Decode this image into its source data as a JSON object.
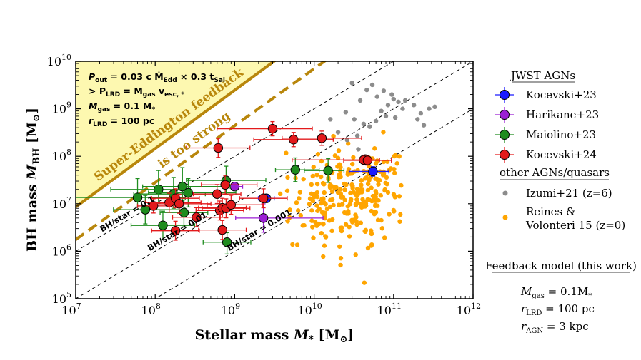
{
  "chart_data": {
    "type": "scatter",
    "xscale": "log",
    "yscale": "log",
    "xlim": [
      10000000,
      1000000000000
    ],
    "ylim": [
      100000,
      10000000000
    ],
    "xlabel": "Stellar mass",
    "xlabel_sym": "M",
    "xlabel_sub": "*",
    "xlabel_unit": "[M",
    "xlabel_unit_sub": "⊙",
    "xlabel_close": "]",
    "ylabel": "BH mass",
    "ylabel_sym": "M",
    "ylabel_sub": "BH",
    "ylabel_unit": "[M",
    "ylabel_unit_sub": "⊙",
    "ylabel_close": "]",
    "x_ticks": [
      {
        "value": 10000000,
        "base": "10",
        "exp": "7"
      },
      {
        "value": 100000000,
        "base": "10",
        "exp": "8"
      },
      {
        "value": 1000000000,
        "base": "10",
        "exp": "9"
      },
      {
        "value": 10000000000,
        "base": "10",
        "exp": "10"
      },
      {
        "value": 100000000000,
        "base": "10",
        "exp": "11"
      },
      {
        "value": 1000000000000,
        "base": "10",
        "exp": "12"
      }
    ],
    "y_ticks": [
      {
        "value": 100000,
        "base": "10",
        "exp": "5"
      },
      {
        "value": 1000000,
        "base": "10",
        "exp": "6"
      },
      {
        "value": 10000000,
        "base": "10",
        "exp": "7"
      },
      {
        "value": 100000000,
        "base": "10",
        "exp": "8"
      },
      {
        "value": 1000000000,
        "base": "10",
        "exp": "9"
      },
      {
        "value": 10000000000,
        "base": "10",
        "exp": "10"
      }
    ],
    "colors": {
      "region": "#fdf8b0",
      "gold": "#b8860b",
      "kocevski23": "#1a1aff",
      "harikane23": "#9b1fd4",
      "maiolino23": "#1e8c1e",
      "kocevski24": "#e31a1c",
      "izumi21": "#8c8c8c",
      "reines15": "#ffa500"
    },
    "ratio_lines": [
      {
        "ratio": 0.1,
        "label": "BH/star = 0.1",
        "label_logx": 7.35
      },
      {
        "ratio": 0.01,
        "label": "BH/star = 0.01",
        "label_logx": 7.95
      },
      {
        "ratio": 0.001,
        "label": "BH/star = 0.001",
        "label_logx": 8.95
      }
    ],
    "model_lines": [
      {
        "name": "feedback-model-solid",
        "coef": 0.021,
        "exponent": 1.23,
        "style": "solid"
      },
      {
        "name": "feedback-model-dashed",
        "coef": 0.007,
        "exponent": 1.2,
        "style": "dashed"
      }
    ],
    "region_label": [
      "Super-Eddington feedback",
      "is too strong"
    ],
    "formula": {
      "line1": {
        "main": "P",
        "sub": "out",
        "text": " = 0.03 c Ṁ",
        "sub2": "Edd",
        "text2": " × 0.3 t",
        "sub3": "Sal"
      },
      "line2": {
        "text": "> P",
        "sub": "LRD",
        "text2": " = M",
        "sub2": "gas",
        "text3": " v",
        "sub3": "esc, *"
      },
      "line3": {
        "main": "M",
        "sub": "gas",
        "text": " = 0.1 M",
        "sub2": "*"
      },
      "line4": {
        "main": "r",
        "sub": "LRD",
        "text": " = 100 pc"
      }
    },
    "series": [
      {
        "name": "Kocevski+23",
        "color": "#1a1aff",
        "points": [
          {
            "x": 2500000000,
            "y": 13000000,
            "xerr": [
              0.1,
              0.1
            ],
            "yerr": [
              0.05,
              0.05
            ]
          },
          {
            "x": 55000000000,
            "y": 48000000,
            "xerr": [
              0.3,
              0.2
            ],
            "yerr": [
              0.1,
              0.1
            ]
          }
        ]
      },
      {
        "name": "Harikane+23",
        "color": "#9b1fd4",
        "points": [
          {
            "x": 1000000000,
            "y": 23000000,
            "xerr": [
              0.1,
              0.1
            ],
            "yerr": [
              0.05,
              0.05
            ]
          },
          {
            "x": 2300000000,
            "y": 5000000,
            "xerr": [
              0.35,
              0.75
            ],
            "yerr": [
              0.3,
              0.3
            ]
          }
        ]
      },
      {
        "name": "Maiolino+23",
        "color": "#1e8c1e",
        "points": [
          {
            "x": 60000000,
            "y": 13500000,
            "xerr": [
              0.9,
              0.6
            ],
            "yerr": [
              0.2,
              0.4
            ]
          },
          {
            "x": 75000000,
            "y": 7500000,
            "xerr": [
              0.4,
              0.5
            ],
            "yerr": [
              0.3,
              0.3
            ]
          },
          {
            "x": 110000000,
            "y": 20000000,
            "xerr": [
              0.6,
              0.4
            ],
            "yerr": [
              0.3,
              0.4
            ]
          },
          {
            "x": 125000000,
            "y": 3500000,
            "xerr": [
              0.4,
              0.4
            ],
            "yerr": [
              0.3,
              0.3
            ]
          },
          {
            "x": 170000000,
            "y": 16000000,
            "xerr": [
              0.5,
              0.4
            ],
            "yerr": [
              0.3,
              0.35
            ]
          },
          {
            "x": 220000000,
            "y": 23000000,
            "xerr": [
              0.5,
              0.6
            ],
            "yerr": [
              0.3,
              0.4
            ]
          },
          {
            "x": 230000000,
            "y": 6500000,
            "xerr": [
              0.3,
              0.3
            ],
            "yerr": [
              0.3,
              0.3
            ]
          },
          {
            "x": 260000000,
            "y": 17000000,
            "xerr": [
              0.5,
              0.6
            ],
            "yerr": [
              0.3,
              0.3
            ]
          },
          {
            "x": 780000000,
            "y": 31000000,
            "xerr": [
              0.5,
              0.5
            ],
            "yerr": [
              0.3,
              0.3
            ]
          },
          {
            "x": 800000000,
            "y": 1550000,
            "xerr": [
              0.3,
              0.3
            ],
            "yerr": [
              0.25,
              0.2
            ]
          },
          {
            "x": 5800000000,
            "y": 52000000,
            "xerr": [
              0.25,
              0.3
            ],
            "yerr": [
              0.25,
              0.25
            ]
          },
          {
            "x": 15000000000,
            "y": 50000000,
            "xerr": [
              0.3,
              0.2
            ],
            "yerr": [
              0.25,
              0.25
            ]
          }
        ]
      },
      {
        "name": "Kocevski+24",
        "color": "#e31a1c",
        "points": [
          {
            "x": 95000000,
            "y": 9000000,
            "xerr": [
              0.2,
              0.3
            ],
            "yerr": [
              0.15,
              0.15
            ]
          },
          {
            "x": 150000000,
            "y": 10500000,
            "xerr": [
              0.3,
              0.4
            ],
            "yerr": [
              0.2,
              0.2
            ]
          },
          {
            "x": 180000000,
            "y": 13000000,
            "xerr": [
              0.3,
              0.3
            ],
            "yerr": [
              0.2,
              0.2
            ]
          },
          {
            "x": 180000000,
            "y": 2700000,
            "xerr": [
              0.3,
              0.3
            ],
            "yerr": [
              0.2,
              0.2
            ]
          },
          {
            "x": 200000000,
            "y": 10000000,
            "xerr": [
              0.3,
              0.4
            ],
            "yerr": [
              0.2,
              0.2
            ]
          },
          {
            "x": 330000000,
            "y": 5200000,
            "xerr": [
              0.3,
              0.3
            ],
            "yerr": [
              0.2,
              0.2
            ]
          },
          {
            "x": 600000000,
            "y": 16000000,
            "xerr": [
              0.3,
              0.3
            ],
            "yerr": [
              0.2,
              0.2
            ]
          },
          {
            "x": 620000000,
            "y": 150000000,
            "xerr": [
              0.4,
              0.4
            ],
            "yerr": [
              0.2,
              0.2
            ]
          },
          {
            "x": 650000000,
            "y": 7200000,
            "xerr": [
              0.3,
              0.3
            ],
            "yerr": [
              0.2,
              0.2
            ]
          },
          {
            "x": 700000000,
            "y": 2800000,
            "xerr": [
              0.3,
              0.3
            ],
            "yerr": [
              0.2,
              0.2
            ]
          },
          {
            "x": 700000000,
            "y": 8200000,
            "xerr": [
              0.3,
              0.3
            ],
            "yerr": [
              0.2,
              0.2
            ]
          },
          {
            "x": 760000000,
            "y": 25000000,
            "xerr": [
              0.3,
              0.4
            ],
            "yerr": [
              0.2,
              0.2
            ]
          },
          {
            "x": 780000000,
            "y": 8000000,
            "xerr": [
              0.3,
              0.3
            ],
            "yerr": [
              0.2,
              0.2
            ]
          },
          {
            "x": 900000000,
            "y": 9500000,
            "xerr": [
              0.3,
              0.4
            ],
            "yerr": [
              0.2,
              0.2
            ]
          },
          {
            "x": 2300000000,
            "y": 13000000,
            "xerr": [
              0.3,
              0.3
            ],
            "yerr": [
              0.2,
              0.2
            ]
          },
          {
            "x": 3000000000,
            "y": 380000000,
            "xerr": [
              0.7,
              0.5
            ],
            "yerr": [
              0.15,
              0.15
            ]
          },
          {
            "x": 5500000000,
            "y": 225000000,
            "xerr": [
              0.5,
              0.5
            ],
            "yerr": [
              0.15,
              0.15
            ]
          },
          {
            "x": 12500000000,
            "y": 240000000,
            "xerr": [
              0.5,
              0.5
            ],
            "yerr": [
              0.15,
              0.15
            ]
          },
          {
            "x": 42000000000,
            "y": 84000000,
            "xerr": [
              0.9,
              0.2
            ],
            "yerr": [
              0.1,
              0.1
            ]
          },
          {
            "x": 47000000000,
            "y": 82000000,
            "xerr": [
              0.3,
              0.3
            ],
            "yerr": [
              0.1,
              0.1
            ]
          }
        ]
      }
    ],
    "izumi21": {
      "name": "Izumi+21 (z=6)",
      "color": "#8c8c8c",
      "points": [
        [
          30000000000.0,
          3500000000.0
        ],
        [
          38000000000.0,
          1500000000.0
        ],
        [
          46000000000.0,
          2500000000.0
        ],
        [
          54000000000.0,
          3200000000.0
        ],
        [
          62000000000.0,
          1800000000.0
        ],
        [
          70000000000.0,
          900000000.0
        ],
        [
          85000000000.0,
          1200000000.0
        ],
        [
          100000000000.0,
          1600000000.0
        ],
        [
          115000000000.0,
          1400000000.0
        ],
        [
          220000000000.0,
          800000000.0
        ],
        [
          280000000000.0,
          1000000000.0
        ],
        [
          330000000000.0,
          1100000000.0
        ],
        [
          25000000000.0,
          850000000.0
        ],
        [
          32000000000.0,
          600000000.0
        ],
        [
          42000000000.0,
          480000000.0
        ],
        [
          50000000000.0,
          420000000.0
        ],
        [
          60000000000.0,
          550000000.0
        ],
        [
          80000000000.0,
          700000000.0
        ],
        [
          16000000000.0,
          600000000.0
        ],
        [
          20000000000.0,
          320000000.0
        ],
        [
          26000000000.0,
          220000000.0
        ],
        [
          36000000000.0,
          140000000.0
        ],
        [
          44000000000.0,
          100000000.0
        ],
        [
          130000000000.0,
          1000000000.0
        ],
        [
          105000000000.0,
          650000000.0
        ],
        [
          35000000000.0,
          270000000.0
        ],
        [
          140000000000.0,
          1500000000.0
        ],
        [
          200000000000.0,
          600000000.0
        ],
        [
          180000000000.0,
          1200000000.0
        ],
        [
          240000000000.0,
          450000000.0
        ],
        [
          95000000000.0,
          2000000000.0
        ],
        [
          75000000000.0,
          2400000000.0
        ]
      ]
    },
    "reines15": {
      "name": "Reines & Volonteri 15 (z=0)",
      "color": "#ffa500",
      "count": 260,
      "center_log_x": 10.45,
      "center_log_y": 7.1,
      "spread_log_x": 0.38,
      "spread_log_y": 0.52,
      "seed": 12345
    }
  },
  "legend": {
    "jwst_title": "JWST AGNs",
    "jwst_items": [
      "Kocevski+23",
      "Harikane+23",
      "Maiolino+23",
      "Kocevski+24"
    ],
    "other_title": "other AGNs/quasars",
    "izumi_label": "Izumi+21 (z=6)",
    "reines_label_line1": "Reines &",
    "reines_label_line2": "Volonteri 15 (z=0)",
    "feedback_title": "Feedback model (this work)",
    "fb1": {
      "sym": "M",
      "sub": "gas",
      "val": " = 0.1M",
      "val_sub": "*"
    },
    "fb2": {
      "sym": "r",
      "sub": "LRD",
      "val": " = 100 pc"
    },
    "fb3": {
      "sym": "r",
      "sub": "AGN",
      "val": " = 3 kpc"
    }
  }
}
